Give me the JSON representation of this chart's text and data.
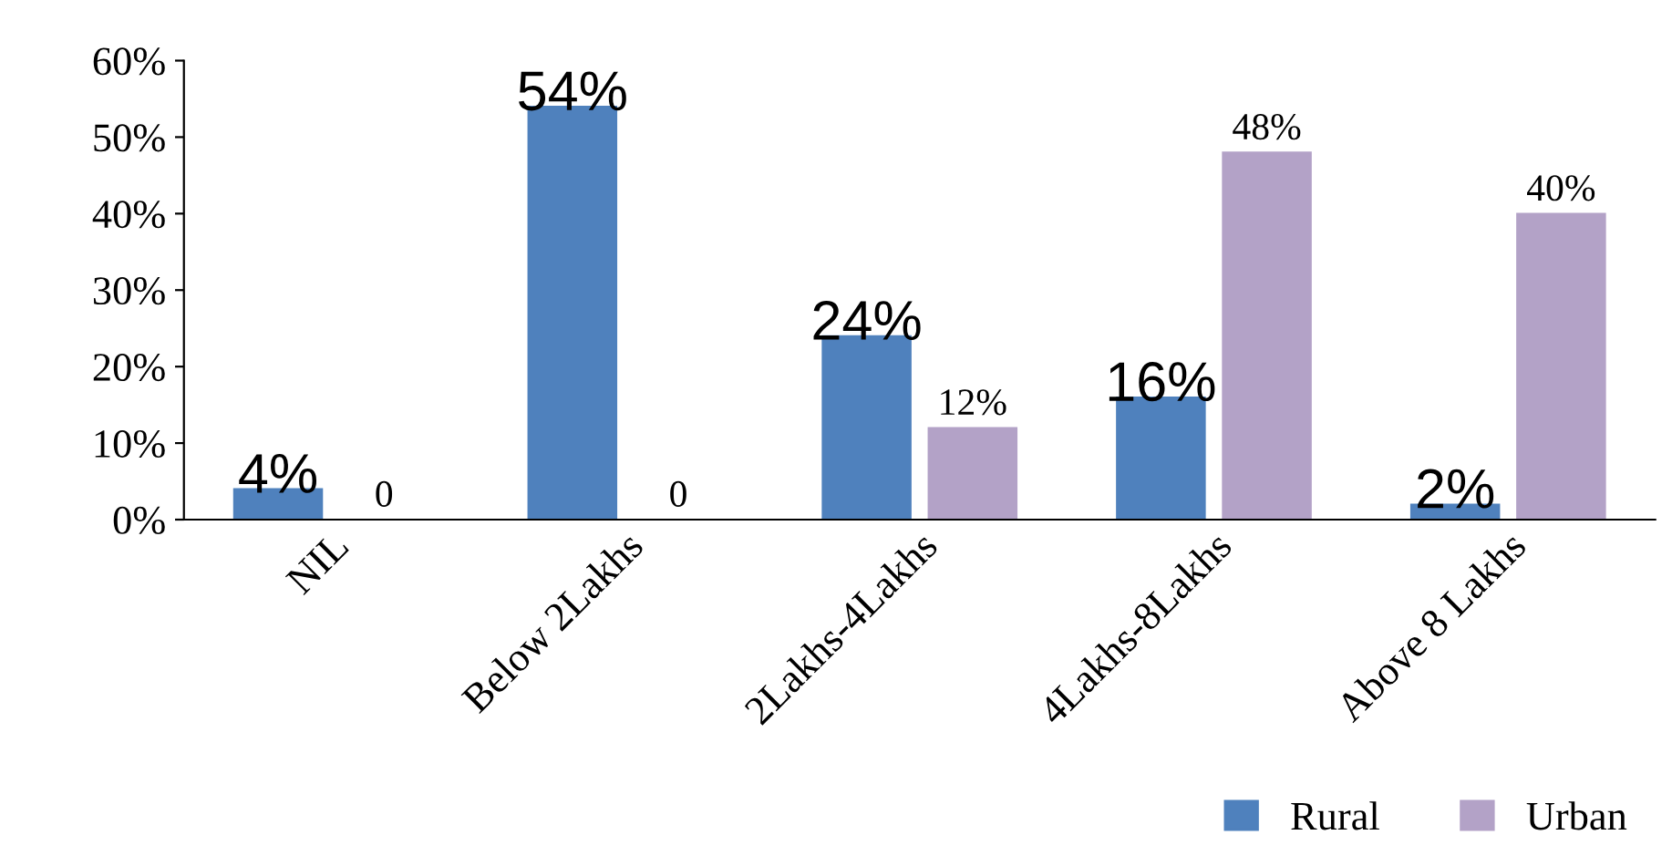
{
  "chart_data": {
    "type": "bar",
    "categories": [
      "NIL",
      "Below 2Lakhs",
      "2Lakhs-4Lakhs",
      "4Lakhs-8Lakhs",
      "Above 8 Lakhs"
    ],
    "series": [
      {
        "name": "Rural",
        "color": "#4f81bd",
        "values": [
          4,
          54,
          24,
          16,
          2
        ],
        "value_labels": [
          "4%",
          "54%",
          "24%",
          "16%",
          "2%"
        ]
      },
      {
        "name": "Urban",
        "color": "#b3a2c7",
        "values": [
          0,
          0,
          12,
          48,
          40
        ],
        "value_labels": [
          "0",
          "0",
          "12%",
          "48%",
          "40%"
        ]
      }
    ],
    "ylim": [
      0,
      60
    ],
    "yticks": [
      {
        "value": 0,
        "label": "0%"
      },
      {
        "value": 10,
        "label": "10%"
      },
      {
        "value": 20,
        "label": "20%"
      },
      {
        "value": 30,
        "label": "30%"
      },
      {
        "value": 40,
        "label": "40%"
      },
      {
        "value": 50,
        "label": "50%"
      },
      {
        "value": 60,
        "label": "60%"
      }
    ],
    "grid": false,
    "legend": "bottom right"
  }
}
